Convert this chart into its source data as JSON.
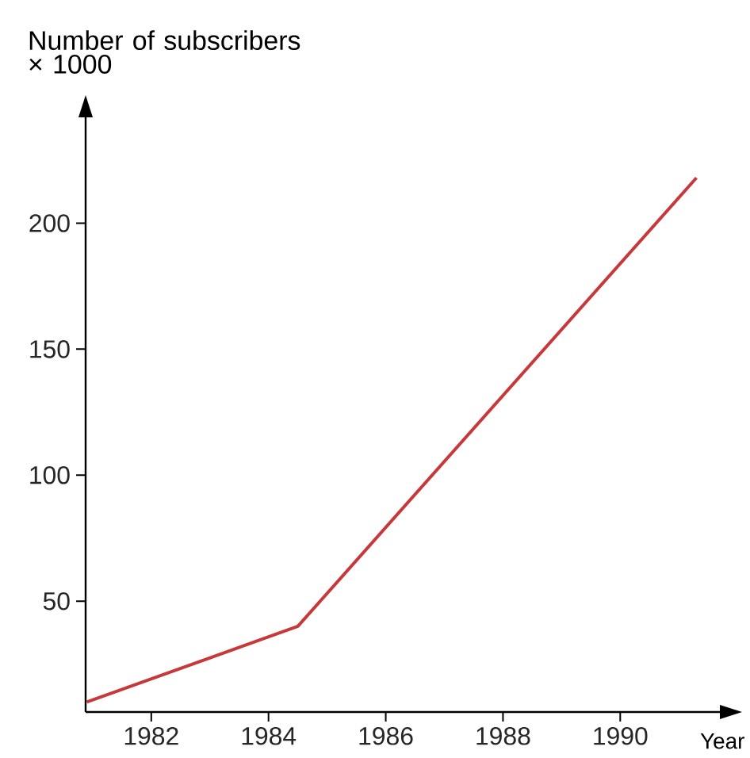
{
  "chart_data": {
    "type": "line",
    "ylabel": "Number of subscribers × 1000",
    "xlabel": "Year",
    "x": [
      1980.9,
      1984.5,
      1991.3
    ],
    "values": [
      10,
      40,
      218
    ],
    "color": "#c8383a",
    "line_style": "solid",
    "xlim": [
      1980.88,
      1991.7
    ],
    "ylim": [
      6,
      242
    ],
    "xticks": [
      1982,
      1984,
      1986,
      1988,
      1990
    ],
    "yticks": [
      50,
      100,
      150,
      200
    ]
  }
}
